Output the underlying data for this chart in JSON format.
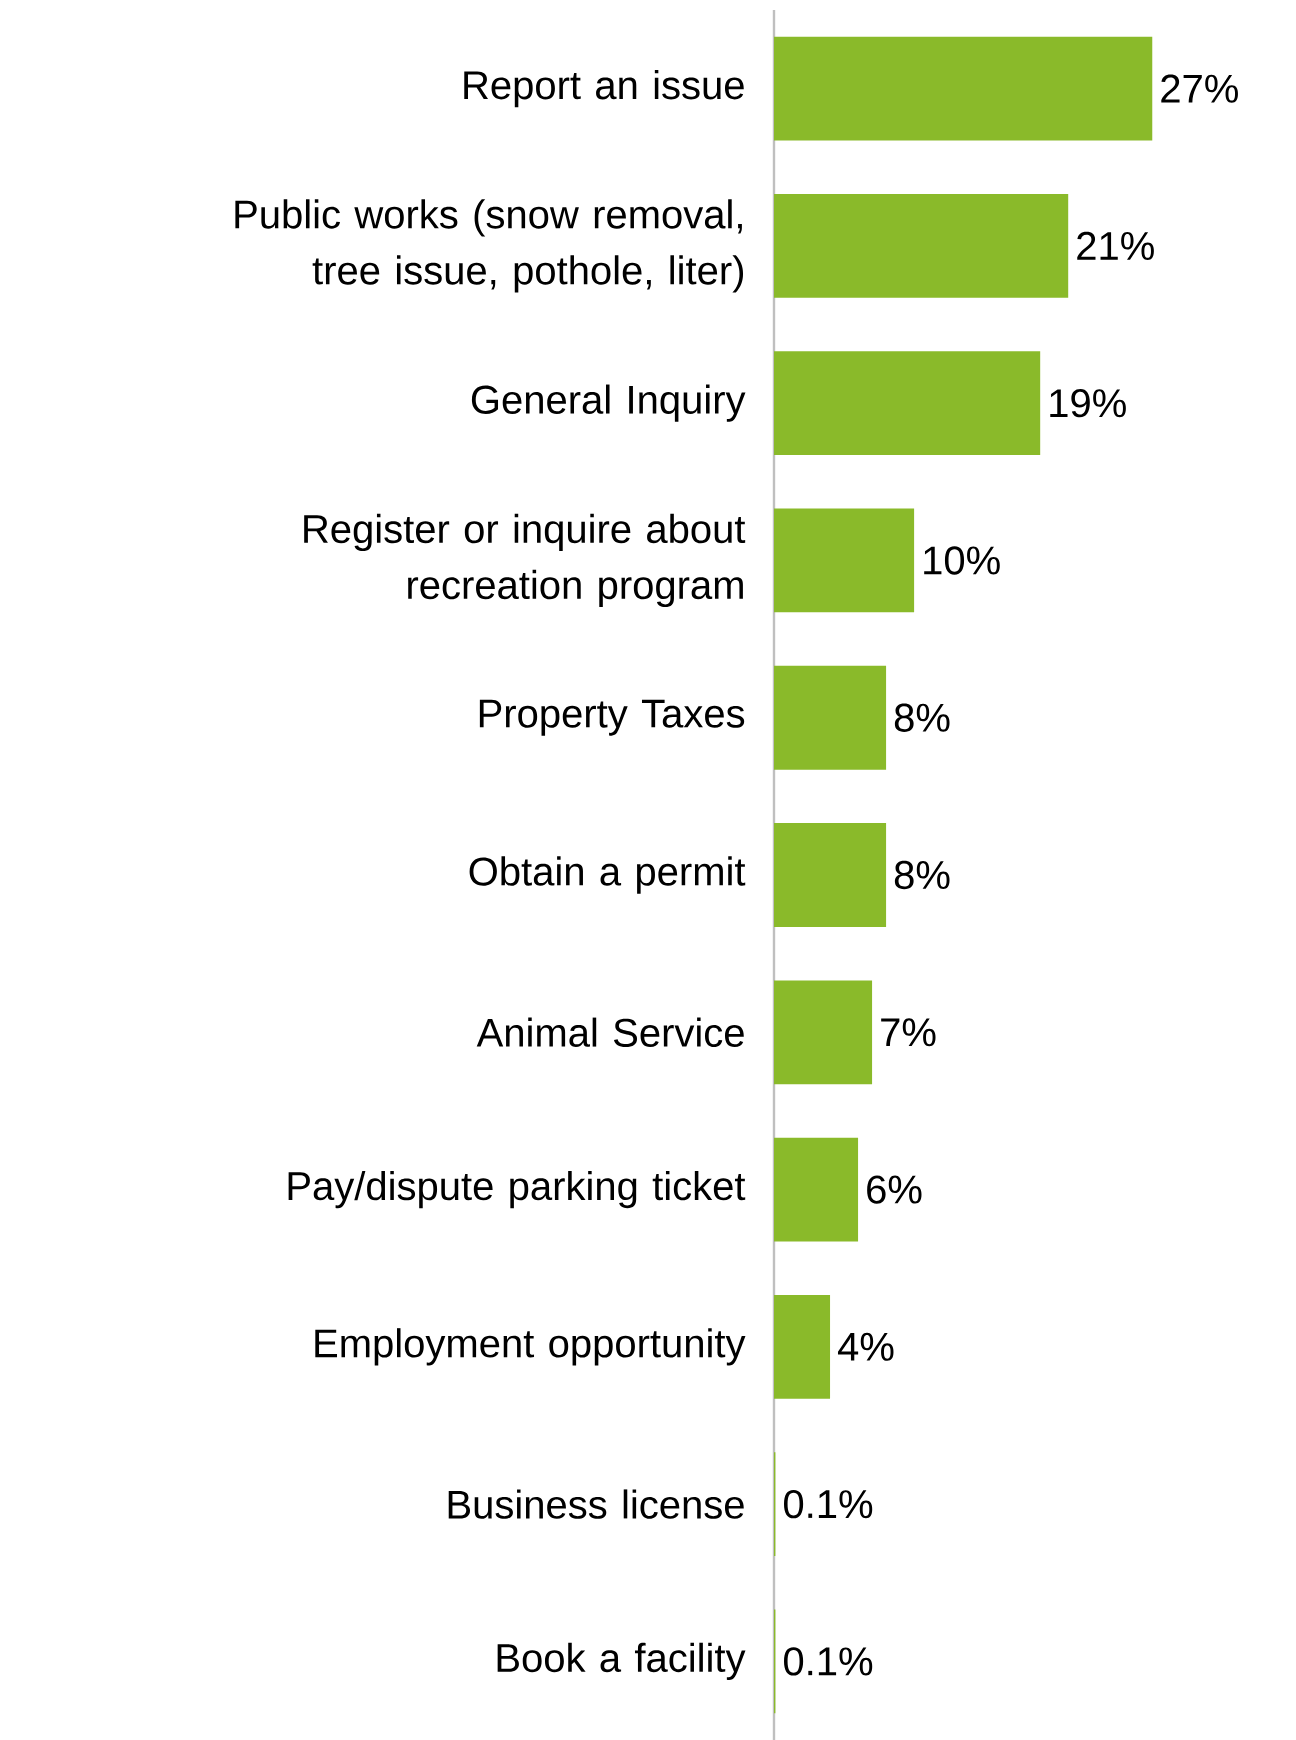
{
  "chart_data": {
    "type": "bar",
    "orientation": "horizontal",
    "categories": [
      "Report an issue",
      "Public works (snow removal, tree issue, pothole, liter)",
      "General Inquiry",
      "Register or inquire about recreation program",
      "Property Taxes",
      "Obtain a permit",
      "Animal Service",
      "Pay/dispute parking ticket",
      "Employment opportunity",
      "Business license",
      "Book a facility"
    ],
    "values": [
      27,
      21,
      19,
      10,
      8,
      8,
      7,
      6,
      4,
      0.1,
      0.1
    ],
    "value_labels": [
      "27%",
      "21%",
      "19%",
      "10%",
      "8%",
      "8%",
      "7%",
      "6%",
      "4%",
      "0.1%",
      "0.1%"
    ],
    "color": "#8aba2a"
  }
}
